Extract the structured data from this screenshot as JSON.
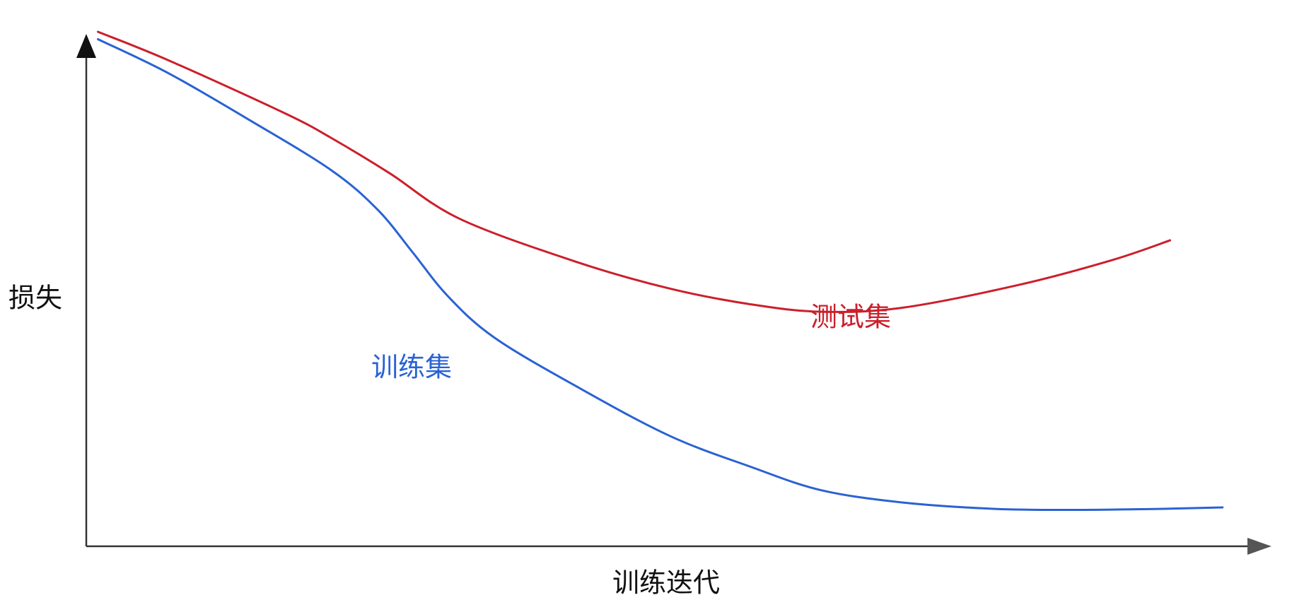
{
  "chart_data": {
    "type": "line",
    "title": "",
    "xlabel": "训练迭代",
    "ylabel": "损失",
    "xlim": [
      0,
      100
    ],
    "ylim": [
      0,
      100
    ],
    "grid": false,
    "legend": "inline",
    "series": [
      {
        "name": "测试集",
        "color": "#cc1f2b",
        "x": [
          1,
          7,
          17,
          21,
          26,
          32,
          42,
          50,
          57,
          63,
          70,
          80,
          88,
          93
        ],
        "y": [
          100,
          94.3,
          83.6,
          78.6,
          71.5,
          62.3,
          53.6,
          48.2,
          45.0,
          43.5,
          44.3,
          48.9,
          53.9,
          57.9
        ]
      },
      {
        "name": "训练集",
        "color": "#2a62d4",
        "x": [
          1,
          7,
          14,
          21,
          25,
          28,
          31,
          35,
          42,
          50,
          57,
          63,
          70,
          78,
          85,
          92,
          97.5
        ],
        "y": [
          98.5,
          91.7,
          82.2,
          72.1,
          64.1,
          55.5,
          46.7,
          38.3,
          28.5,
          18.5,
          12.2,
          7.5,
          5.0,
          3.7,
          3.5,
          3.7,
          4.0
        ]
      }
    ]
  }
}
